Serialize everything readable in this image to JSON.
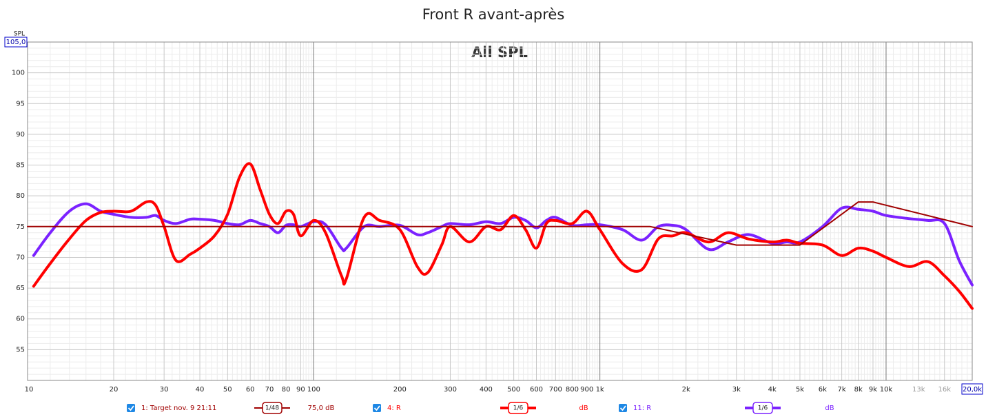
{
  "chart_data": {
    "type": "line",
    "title": "Front R avant-après",
    "annotation": "All SPL",
    "y_label": "SPL",
    "log_x": true,
    "grid": true,
    "xlim": [
      10,
      20000
    ],
    "ylim": [
      50,
      105
    ],
    "xticks": [
      10,
      20,
      30,
      40,
      50,
      60,
      70,
      80,
      90,
      100,
      200,
      300,
      400,
      500,
      600,
      700,
      800,
      900,
      {
        "value": 1000,
        "label": "1k"
      },
      {
        "value": 2000,
        "label": "2k"
      },
      {
        "value": 3000,
        "label": "3k"
      },
      {
        "value": 4000,
        "label": "4k"
      },
      {
        "value": 5000,
        "label": "5k"
      },
      {
        "value": 6000,
        "label": "6k"
      },
      {
        "value": 7000,
        "label": "7k"
      },
      {
        "value": 8000,
        "label": "8k"
      },
      {
        "value": 9000,
        "label": "9k"
      },
      {
        "value": 10000,
        "label": "10k"
      },
      {
        "value": 13000,
        "label": "13k"
      },
      {
        "value": 16000,
        "label": "16k"
      },
      {
        "value": 20000,
        "label": "20,0k"
      }
    ],
    "yticks": [
      55,
      60,
      65,
      70,
      75,
      80,
      85,
      90,
      95,
      100,
      {
        "value": 105,
        "label": "105,0"
      }
    ],
    "series": [
      {
        "name": "1: Target nov. 9 21:11",
        "color": "#a00000",
        "line_width": 2,
        "smoothing": "1/48",
        "offset": "75,0 dB",
        "x": [
          10,
          1500,
          3000,
          5000,
          8000,
          9000,
          20000
        ],
        "values": [
          75,
          75,
          72,
          72,
          79,
          79,
          75
        ]
      },
      {
        "name": "4: R",
        "color": "#ff0000",
        "line_width": 4,
        "smoothing": "1/6",
        "offset": "dB",
        "x": [
          10.5,
          12,
          14,
          16,
          18,
          20,
          23,
          26,
          28,
          30,
          33,
          37,
          40,
          45,
          50,
          55,
          60,
          65,
          70,
          75,
          80,
          85,
          90,
          100,
          110,
          125,
          130,
          150,
          170,
          200,
          230,
          250,
          280,
          300,
          350,
          400,
          450,
          500,
          550,
          600,
          650,
          700,
          800,
          900,
          1000,
          1200,
          1400,
          1600,
          1800,
          2000,
          2400,
          2800,
          3300,
          4000,
          4500,
          5000,
          6000,
          7000,
          8000,
          9000,
          10000,
          12000,
          14000,
          16000,
          18000,
          20000
        ],
        "values": [
          65.3,
          69,
          73,
          76,
          77.3,
          77.5,
          77.5,
          79,
          78.5,
          75,
          69.5,
          70.5,
          71.5,
          73.5,
          77,
          83,
          85.2,
          81,
          77,
          75.5,
          77.5,
          77,
          73.5,
          76,
          74,
          67,
          66.5,
          76.5,
          76,
          74.5,
          68.5,
          67.5,
          72,
          75,
          72.5,
          75,
          74.5,
          76.8,
          74.5,
          71.5,
          75.5,
          76,
          75.5,
          77.5,
          74.5,
          69,
          68,
          73,
          73.5,
          74,
          72.5,
          74,
          73,
          72.5,
          72.8,
          72.3,
          72,
          70.3,
          71.5,
          71,
          70,
          68.5,
          69.3,
          67,
          64.5,
          61.7
        ]
      },
      {
        "name": "11: R",
        "color": "#7b22ff",
        "line_width": 4,
        "smoothing": "1/6",
        "offset": "dB",
        "x": [
          10.5,
          12,
          14,
          16,
          18,
          20,
          23,
          26,
          28,
          30,
          33,
          37,
          40,
          45,
          50,
          55,
          60,
          65,
          70,
          75,
          80,
          85,
          90,
          100,
          110,
          125,
          130,
          150,
          170,
          200,
          230,
          250,
          280,
          300,
          350,
          400,
          450,
          500,
          550,
          600,
          650,
          700,
          800,
          900,
          1000,
          1200,
          1400,
          1600,
          1800,
          2000,
          2400,
          2800,
          3300,
          4000,
          4500,
          5000,
          6000,
          7000,
          8000,
          9000,
          10000,
          12000,
          14000,
          16000,
          18000,
          20000
        ],
        "values": [
          70.3,
          74,
          77.5,
          78.7,
          77.5,
          77,
          76.5,
          76.5,
          76.8,
          76,
          75.5,
          76.2,
          76.2,
          76,
          75.5,
          75.3,
          76,
          75.5,
          75,
          74,
          75.2,
          75.3,
          75,
          75.8,
          75.3,
          71.5,
          71.5,
          75,
          75,
          75.2,
          73.7,
          74,
          75,
          75.5,
          75.3,
          75.8,
          75.5,
          76.5,
          76,
          74.8,
          76,
          76.5,
          75.2,
          75.3,
          75.3,
          74.5,
          72.8,
          75,
          75.2,
          74.5,
          71.3,
          72.5,
          73.7,
          72.3,
          72.5,
          72.5,
          75,
          78,
          77.8,
          77.5,
          76.8,
          76.3,
          76,
          75.5,
          69.5,
          65.5
        ]
      }
    ]
  }
}
